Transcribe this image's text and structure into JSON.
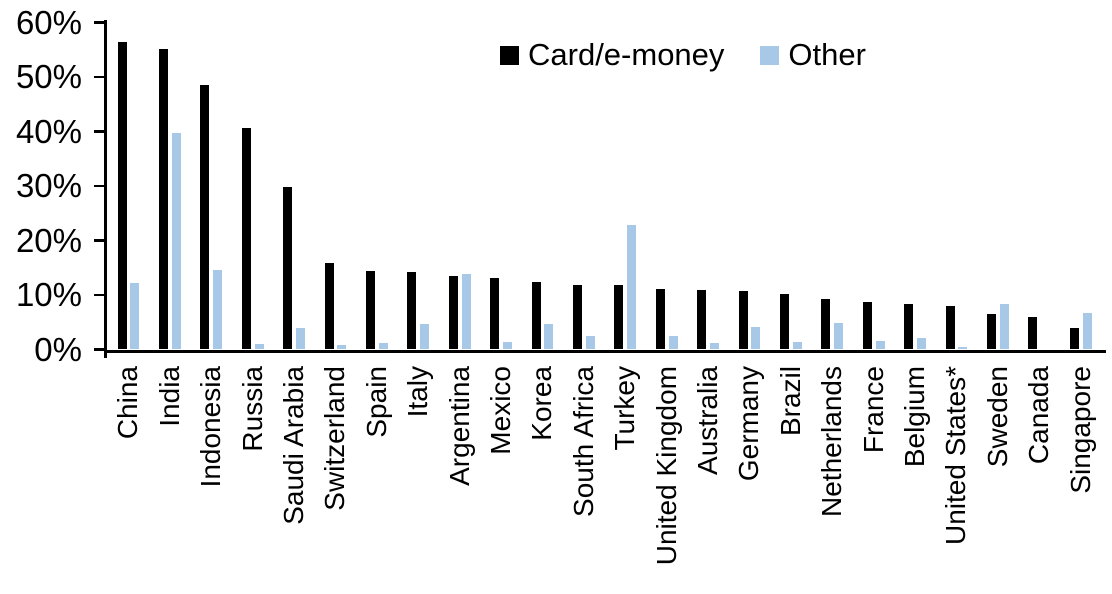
{
  "chart_data": {
    "type": "bar",
    "title": "",
    "xlabel": "",
    "ylabel": "",
    "ylim": [
      0,
      60
    ],
    "grid": false,
    "legend_position": "top-center",
    "y_ticks": [
      "0%",
      "10%",
      "20%",
      "30%",
      "40%",
      "50%",
      "60%"
    ],
    "categories": [
      "China",
      "India",
      "Indonesia",
      "Russia",
      "Saudi Arabia",
      "Switzerland",
      "Spain",
      "Italy",
      "Argentina",
      "Mexico",
      "Korea",
      "South Africa",
      "Turkey",
      "United Kingdom",
      "Australia",
      "Germany",
      "Brazil",
      "Netherlands",
      "France",
      "Belgium",
      "United States*",
      "Sweden",
      "Canada",
      "Singapore"
    ],
    "series": [
      {
        "name": "Card/e-money",
        "color": "#000000",
        "values": [
          56.5,
          55.2,
          48.5,
          40.6,
          29.9,
          15.8,
          14.4,
          14.2,
          13.5,
          13.1,
          12.4,
          11.9,
          11.8,
          11.1,
          10.9,
          10.8,
          10.1,
          9.3,
          8.7,
          8.3,
          8.0,
          6.6,
          6.0,
          4.0
        ]
      },
      {
        "name": "Other",
        "color": "#A8C8E7",
        "values": [
          12.3,
          39.8,
          14.6,
          1.0,
          4.0,
          0.9,
          1.2,
          4.6,
          13.9,
          1.4,
          4.6,
          2.4,
          22.8,
          2.4,
          1.2,
          4.2,
          1.3,
          4.9,
          1.6,
          2.2,
          0.4,
          8.3,
          0.0,
          6.7
        ]
      }
    ]
  }
}
